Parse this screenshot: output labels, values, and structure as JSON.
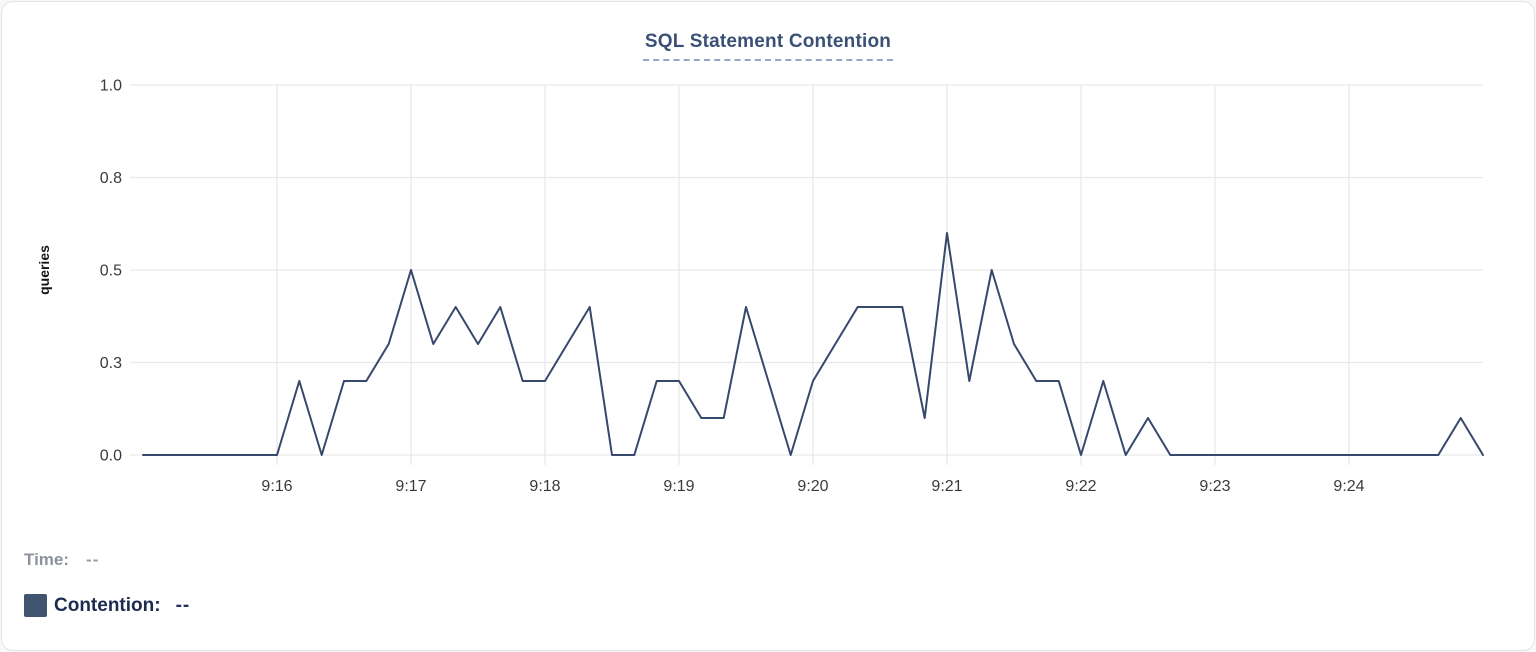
{
  "chart_data": {
    "type": "line",
    "title": "SQL Statement Contention",
    "xlabel": "",
    "ylabel": "queries",
    "x_start": "9:15:00",
    "x_end": "9:25:00",
    "interval_seconds": 10,
    "x_tick_labels": [
      "9:16",
      "9:17",
      "9:18",
      "9:19",
      "9:20",
      "9:21",
      "9:22",
      "9:23",
      "9:24"
    ],
    "y_ticks": [
      {
        "value": 0,
        "label": "0.0"
      },
      {
        "value": 0.25,
        "label": "0.3"
      },
      {
        "value": 0.5,
        "label": "0.5"
      },
      {
        "value": 0.75,
        "label": "0.8"
      },
      {
        "value": 1.0,
        "label": "1.0"
      }
    ],
    "ylim": [
      0,
      1
    ],
    "grid": true,
    "legend_position": "bottom-left",
    "series": [
      {
        "name": "Contention",
        "color": "#36486c",
        "values": [
          0,
          0,
          0,
          0,
          0,
          0,
          0,
          0.2,
          0,
          0.2,
          0.2,
          0.3,
          0.5,
          0.3,
          0.4,
          0.3,
          0.4,
          0.2,
          0.2,
          0.3,
          0.4,
          0,
          0,
          0.2,
          0.2,
          0.1,
          0.1,
          0.4,
          0.2,
          0,
          0.2,
          0.3,
          0.4,
          0.4,
          0.4,
          0.1,
          0.6,
          0.2,
          0.5,
          0.3,
          0.2,
          0.2,
          0,
          0.2,
          0,
          0.1,
          0,
          0,
          0,
          0,
          0,
          0,
          0,
          0,
          0,
          0,
          0,
          0,
          0,
          0.1,
          0
        ]
      }
    ]
  },
  "footer": {
    "time_label": "Time:",
    "time_value": "--",
    "contention_label": "Contention:",
    "contention_value": "--"
  },
  "colors": {
    "line": "#36486c",
    "grid": "#e9e9e9",
    "tick_text": "#3a3a3a",
    "axis_title_text": "#141414",
    "swatch": "#40536f",
    "title_text": "#3a5075",
    "title_underline": "#98a4c8"
  }
}
